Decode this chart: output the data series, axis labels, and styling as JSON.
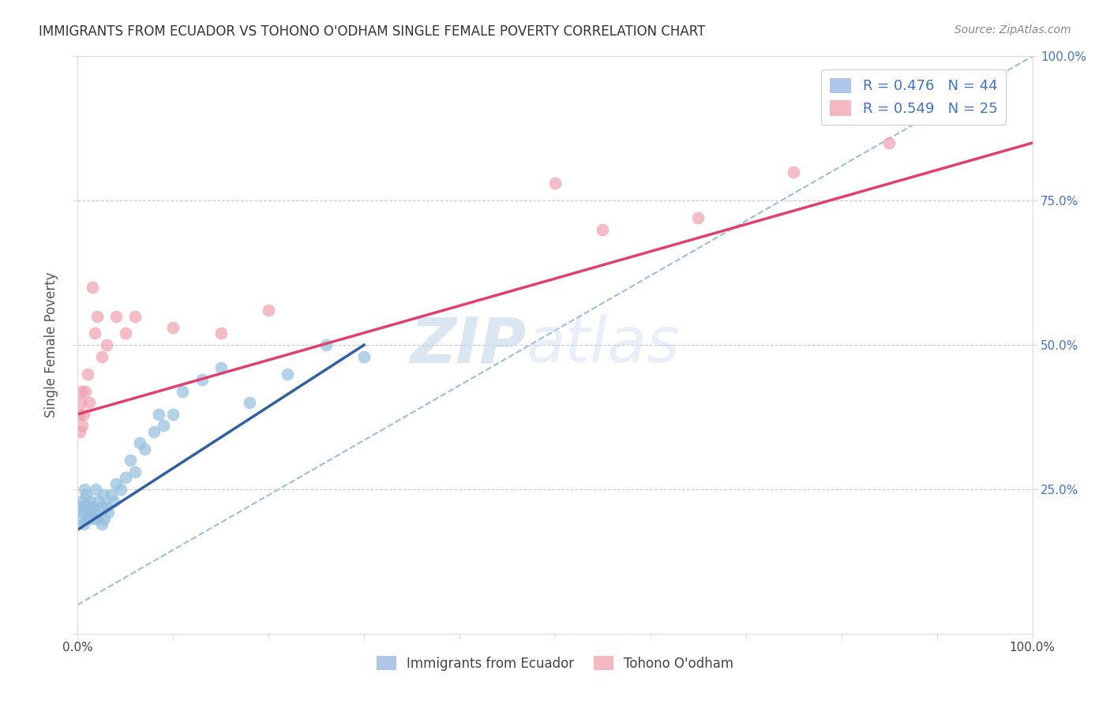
{
  "title": "IMMIGRANTS FROM ECUADOR VS TOHONO O'ODHAM SINGLE FEMALE POVERTY CORRELATION CHART",
  "source": "Source: ZipAtlas.com",
  "ylabel": "Single Female Poverty",
  "legend_entries": [
    {
      "label": "R = 0.476   N = 44",
      "color": "#aec6e8"
    },
    {
      "label": "R = 0.549   N = 25",
      "color": "#f4b8c1"
    }
  ],
  "legend_labels_bottom": [
    "Immigrants from Ecuador",
    "Tohono O'odham"
  ],
  "watermark_zip": "ZIP",
  "watermark_atlas": "atlas",
  "blue_scatter_x": [
    0.002,
    0.003,
    0.004,
    0.005,
    0.006,
    0.007,
    0.008,
    0.009,
    0.01,
    0.011,
    0.012,
    0.013,
    0.015,
    0.016,
    0.018,
    0.019,
    0.02,
    0.022,
    0.025,
    0.025,
    0.027,
    0.028,
    0.03,
    0.032,
    0.035,
    0.038,
    0.04,
    0.045,
    0.05,
    0.055,
    0.06,
    0.065,
    0.07,
    0.08,
    0.085,
    0.09,
    0.1,
    0.11,
    0.13,
    0.15,
    0.18,
    0.22,
    0.26,
    0.3
  ],
  "blue_scatter_y": [
    0.22,
    0.2,
    0.23,
    0.21,
    0.19,
    0.25,
    0.22,
    0.24,
    0.2,
    0.22,
    0.21,
    0.23,
    0.2,
    0.22,
    0.21,
    0.25,
    0.2,
    0.23,
    0.22,
    0.19,
    0.24,
    0.2,
    0.22,
    0.21,
    0.24,
    0.23,
    0.26,
    0.25,
    0.27,
    0.3,
    0.28,
    0.33,
    0.32,
    0.35,
    0.38,
    0.36,
    0.38,
    0.42,
    0.44,
    0.46,
    0.4,
    0.45,
    0.5,
    0.48
  ],
  "pink_scatter_x": [
    0.001,
    0.002,
    0.003,
    0.004,
    0.005,
    0.006,
    0.008,
    0.01,
    0.012,
    0.015,
    0.018,
    0.02,
    0.025,
    0.03,
    0.04,
    0.05,
    0.06,
    0.1,
    0.15,
    0.2,
    0.5,
    0.55,
    0.65,
    0.75,
    0.85
  ],
  "pink_scatter_y": [
    0.38,
    0.35,
    0.4,
    0.42,
    0.36,
    0.38,
    0.42,
    0.45,
    0.4,
    0.6,
    0.52,
    0.55,
    0.48,
    0.5,
    0.55,
    0.52,
    0.55,
    0.53,
    0.52,
    0.56,
    0.78,
    0.7,
    0.72,
    0.8,
    0.85
  ],
  "blue_line_x": [
    0.0,
    0.3
  ],
  "blue_line_y": [
    0.18,
    0.5
  ],
  "pink_line_x": [
    0.0,
    1.0
  ],
  "pink_line_y": [
    0.38,
    0.85
  ],
  "dashed_line_x": [
    0.0,
    1.0
  ],
  "dashed_line_y": [
    0.05,
    1.0
  ],
  "xlim": [
    0.0,
    1.0
  ],
  "ylim": [
    0.0,
    1.0
  ],
  "blue_color": "#94bfde",
  "pink_color": "#f0a0b0",
  "blue_line_color": "#3060a0",
  "pink_line_color": "#e04070",
  "dashed_color": "#90b8d8",
  "background_color": "#ffffff"
}
